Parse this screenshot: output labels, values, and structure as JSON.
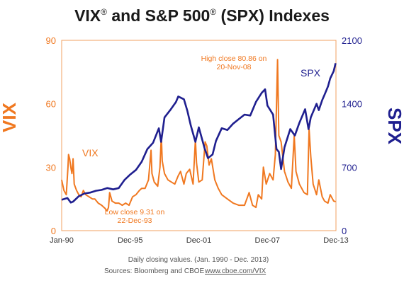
{
  "chart_data": {
    "type": "line",
    "title": {
      "part1": "VIX",
      "reg1": "®",
      "part2": " and S&P 500",
      "reg2": "®",
      "part3": " (SPX) Indexes"
    },
    "ylabel_left": "VIX",
    "ylabel_right": "SPX",
    "ylim_left": [
      0,
      90
    ],
    "ylim_right": [
      0,
      2100
    ],
    "y_ticks_left": [
      "0",
      "30",
      "60",
      "90"
    ],
    "y_ticks_right": [
      "0",
      "700",
      "1400",
      "2100"
    ],
    "x_tick_labels": [
      "Jan-90",
      "Dec-95",
      "Dec-01",
      "Dec-07",
      "Dec-13"
    ],
    "xlim": [
      1990.0,
      2014.0
    ],
    "grid": false,
    "colors": {
      "vix": "#f07820",
      "spx": "#1f1f8f",
      "frame": "#f2a060"
    },
    "series": [
      {
        "name": "VIX",
        "axis": "left",
        "label_text": "VIX",
        "points": [
          [
            1990.0,
            24
          ],
          [
            1990.2,
            19
          ],
          [
            1990.4,
            17
          ],
          [
            1990.55,
            30
          ],
          [
            1990.6,
            36
          ],
          [
            1990.7,
            34
          ],
          [
            1990.8,
            30
          ],
          [
            1990.9,
            27
          ],
          [
            1991.0,
            34
          ],
          [
            1991.1,
            22
          ],
          [
            1991.3,
            19
          ],
          [
            1991.5,
            17
          ],
          [
            1991.7,
            16
          ],
          [
            1991.9,
            19
          ],
          [
            1992.1,
            17
          ],
          [
            1992.4,
            16
          ],
          [
            1992.7,
            15
          ],
          [
            1992.9,
            15
          ],
          [
            1993.2,
            13
          ],
          [
            1993.5,
            12
          ],
          [
            1993.8,
            10.5
          ],
          [
            1993.97,
            9.31
          ],
          [
            1994.1,
            11
          ],
          [
            1994.2,
            18
          ],
          [
            1994.4,
            14
          ],
          [
            1994.7,
            13
          ],
          [
            1995.0,
            13
          ],
          [
            1995.3,
            12
          ],
          [
            1995.6,
            13
          ],
          [
            1995.9,
            12
          ],
          [
            1996.2,
            16
          ],
          [
            1996.5,
            17
          ],
          [
            1996.8,
            19
          ],
          [
            1997.0,
            20
          ],
          [
            1997.3,
            20
          ],
          [
            1997.6,
            24
          ],
          [
            1997.82,
            38
          ],
          [
            1997.9,
            27
          ],
          [
            1998.1,
            23
          ],
          [
            1998.4,
            21
          ],
          [
            1998.6,
            30
          ],
          [
            1998.72,
            45
          ],
          [
            1998.8,
            33
          ],
          [
            1999.0,
            27
          ],
          [
            1999.3,
            24
          ],
          [
            1999.6,
            23
          ],
          [
            1999.9,
            22
          ],
          [
            2000.2,
            26
          ],
          [
            2000.4,
            28
          ],
          [
            2000.7,
            22
          ],
          [
            2000.9,
            27
          ],
          [
            2001.2,
            29
          ],
          [
            2001.5,
            22
          ],
          [
            2001.7,
            43
          ],
          [
            2001.8,
            32
          ],
          [
            2002.0,
            23
          ],
          [
            2002.3,
            24
          ],
          [
            2002.55,
            42
          ],
          [
            2002.7,
            40
          ],
          [
            2002.9,
            31
          ],
          [
            2003.1,
            34
          ],
          [
            2003.4,
            24
          ],
          [
            2003.7,
            20
          ],
          [
            2004.0,
            17
          ],
          [
            2004.5,
            15
          ],
          [
            2005.0,
            13
          ],
          [
            2005.5,
            12
          ],
          [
            2006.0,
            12
          ],
          [
            2006.4,
            18
          ],
          [
            2006.7,
            12
          ],
          [
            2007.0,
            11
          ],
          [
            2007.2,
            17
          ],
          [
            2007.5,
            15
          ],
          [
            2007.65,
            30
          ],
          [
            2007.9,
            22
          ],
          [
            2008.2,
            27
          ],
          [
            2008.5,
            24
          ],
          [
            2008.7,
            36
          ],
          [
            2008.89,
            80.86
          ],
          [
            2009.0,
            45
          ],
          [
            2009.2,
            42
          ],
          [
            2009.5,
            28
          ],
          [
            2009.8,
            23
          ],
          [
            2010.1,
            20
          ],
          [
            2010.35,
            45
          ],
          [
            2010.5,
            28
          ],
          [
            2010.8,
            22
          ],
          [
            2011.2,
            18
          ],
          [
            2011.5,
            17
          ],
          [
            2011.65,
            48
          ],
          [
            2011.8,
            35
          ],
          [
            2012.0,
            22
          ],
          [
            2012.3,
            17
          ],
          [
            2012.5,
            24
          ],
          [
            2012.8,
            16
          ],
          [
            2013.0,
            14
          ],
          [
            2013.3,
            13
          ],
          [
            2013.5,
            17
          ],
          [
            2013.8,
            14
          ],
          [
            2013.97,
            13.7
          ]
        ]
      },
      {
        "name": "SPX",
        "axis": "right",
        "label_text": "SPX",
        "points": [
          [
            1990.0,
            340
          ],
          [
            1990.5,
            360
          ],
          [
            1990.8,
            310
          ],
          [
            1991.0,
            320
          ],
          [
            1991.5,
            380
          ],
          [
            1992.0,
            410
          ],
          [
            1992.5,
            420
          ],
          [
            1993.0,
            440
          ],
          [
            1993.5,
            450
          ],
          [
            1994.0,
            470
          ],
          [
            1994.5,
            455
          ],
          [
            1995.0,
            470
          ],
          [
            1995.5,
            560
          ],
          [
            1996.0,
            620
          ],
          [
            1996.5,
            670
          ],
          [
            1997.0,
            760
          ],
          [
            1997.5,
            900
          ],
          [
            1998.0,
            970
          ],
          [
            1998.5,
            1130
          ],
          [
            1998.7,
            980
          ],
          [
            1999.0,
            1250
          ],
          [
            1999.5,
            1330
          ],
          [
            2000.0,
            1420
          ],
          [
            2000.2,
            1480
          ],
          [
            2000.7,
            1450
          ],
          [
            2001.0,
            1320
          ],
          [
            2001.3,
            1160
          ],
          [
            2001.7,
            980
          ],
          [
            2002.0,
            1140
          ],
          [
            2002.5,
            910
          ],
          [
            2002.8,
            800
          ],
          [
            2003.2,
            840
          ],
          [
            2003.5,
            990
          ],
          [
            2004.0,
            1130
          ],
          [
            2004.5,
            1110
          ],
          [
            2005.0,
            1180
          ],
          [
            2005.5,
            1230
          ],
          [
            2006.0,
            1280
          ],
          [
            2006.5,
            1270
          ],
          [
            2007.0,
            1420
          ],
          [
            2007.5,
            1520
          ],
          [
            2007.8,
            1560
          ],
          [
            2008.0,
            1380
          ],
          [
            2008.5,
            1280
          ],
          [
            2008.8,
            900
          ],
          [
            2009.0,
            870
          ],
          [
            2009.2,
            680
          ],
          [
            2009.5,
            920
          ],
          [
            2010.0,
            1120
          ],
          [
            2010.4,
            1050
          ],
          [
            2010.8,
            1190
          ],
          [
            2011.3,
            1340
          ],
          [
            2011.6,
            1120
          ],
          [
            2011.8,
            1250
          ],
          [
            2012.3,
            1400
          ],
          [
            2012.5,
            1330
          ],
          [
            2012.8,
            1440
          ],
          [
            2013.0,
            1500
          ],
          [
            2013.3,
            1590
          ],
          [
            2013.5,
            1680
          ],
          [
            2013.8,
            1760
          ],
          [
            2013.97,
            1848
          ]
        ]
      }
    ],
    "annotations": [
      {
        "lines": [
          "High close 80.86 on",
          "20-Nov-08"
        ],
        "x": 2008.89,
        "y": 80.86,
        "axis": "left"
      },
      {
        "lines": [
          "Low close 9.31 on",
          "22-Dec-93"
        ],
        "x": 1993.97,
        "y": 9.31,
        "axis": "left"
      }
    ]
  },
  "footer": {
    "line1": "Daily closing values.  (Jan. 1990 - Dec. 2013)",
    "sources": "Sources: Bloomberg and CBOE",
    "url": "www.cboe.com/VIX"
  }
}
